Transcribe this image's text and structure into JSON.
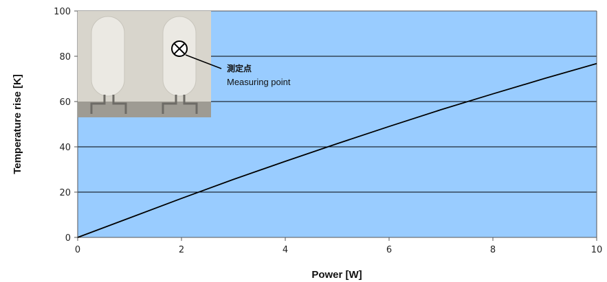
{
  "chart_data": {
    "type": "line",
    "title": "",
    "xlabel": "Power [W]",
    "ylabel": "Temperature rise [K]",
    "xlim": [
      0,
      10
    ],
    "ylim": [
      0,
      100
    ],
    "x_ticks": [
      "0",
      "2",
      "4",
      "6",
      "8",
      "10"
    ],
    "y_ticks": [
      "0",
      "20",
      "40",
      "60",
      "80",
      "100"
    ],
    "grid": "horizontal",
    "plot_background": "#99CCFF",
    "series": [
      {
        "color": "#000000",
        "x": [
          0,
          1,
          2,
          3,
          4,
          5,
          6,
          7,
          8,
          9,
          10
        ],
        "y": [
          0,
          8.6,
          17.2,
          25.6,
          33.6,
          41.4,
          49.0,
          56.4,
          63.4,
          70.2,
          76.8
        ]
      }
    ],
    "annotations": [
      {
        "line1": "測定点",
        "line2": "Measuring point"
      }
    ],
    "inset_image": "photo-of-resistor-with-measuring-point-marker"
  }
}
